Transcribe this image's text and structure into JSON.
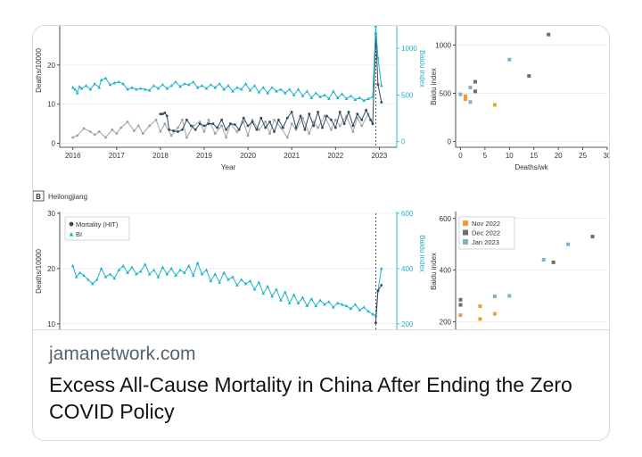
{
  "card": {
    "domain": "jamanetwork.com",
    "title": "Excess All-Cause Mortality in China After Ending the Zero COVID Policy"
  },
  "colors": {
    "mortality": "#2f4a5c",
    "baidu": "#1eb4cc",
    "mortality_alt": "#9aa4ab",
    "nov": "#f29a3a",
    "dec": "#6e6e6e",
    "jan": "#7fb2c9"
  },
  "chart_data": [
    {
      "id": "top-left",
      "type": "line",
      "xlabel": "Year",
      "ylabel": "Deaths/10000",
      "y2label": "Baidu index",
      "xlim": [
        2015.7,
        2023.4
      ],
      "ylim": [
        -1,
        30
      ],
      "y2lim": [
        -60,
        1240
      ],
      "x_ticks": [
        "2016",
        "2017",
        "2018",
        "2019",
        "2020",
        "2021",
        "2022",
        "2023"
      ],
      "y_ticks": [
        "0",
        "10",
        "20"
      ],
      "y2_ticks": [
        "0",
        "500",
        "1000"
      ],
      "dashed_x": 2022.92,
      "series": [
        {
          "role": "mortality_alt",
          "x": [
            2016.0,
            2016.1,
            2016.25,
            2016.4,
            2016.5,
            2016.6,
            2016.75,
            2016.9,
            2017.0,
            2017.1,
            2017.25,
            2017.4,
            2017.5,
            2017.6,
            2017.75,
            2017.9,
            2018.0,
            2018.1,
            2018.25,
            2018.4,
            2018.5,
            2018.6,
            2018.75,
            2018.9,
            2019.0,
            2019.1,
            2019.25,
            2019.4,
            2019.5,
            2019.6,
            2019.75,
            2019.9,
            2020.0,
            2020.1,
            2020.25,
            2020.4,
            2020.5,
            2020.6,
            2020.75,
            2020.9,
            2021.0,
            2021.1,
            2021.25,
            2021.4,
            2021.5,
            2021.6,
            2021.75,
            2021.9,
            2022.0,
            2022.1,
            2022.25,
            2022.4,
            2022.5,
            2022.6,
            2022.75,
            2022.85
          ],
          "values": [
            1.5,
            2,
            3.8,
            3,
            2.2,
            3,
            1.5,
            3.5,
            2.5,
            4,
            5.5,
            3.2,
            4.5,
            2.5,
            4.5,
            6,
            3,
            5,
            2,
            4,
            6,
            1.5,
            4.5,
            5.5,
            3,
            6,
            2.5,
            4.5,
            1.5,
            5,
            3,
            5.5,
            2,
            6,
            3.5,
            5.5,
            2.5,
            6,
            4,
            1.5,
            5,
            3.5,
            6.5,
            2.5,
            5.5,
            4,
            7,
            3.5,
            6,
            4.5,
            7,
            3,
            6.5,
            4.5,
            7.5,
            5
          ]
        },
        {
          "role": "mortality",
          "x": [
            2018.0,
            2018.05,
            2018.1,
            2018.15,
            2018.2,
            2018.3,
            2018.4,
            2018.5,
            2018.6,
            2018.7,
            2018.8,
            2018.9,
            2019.0,
            2019.1,
            2019.2,
            2019.3,
            2019.4,
            2019.5,
            2019.6,
            2019.7,
            2019.8,
            2019.9,
            2020.0,
            2020.1,
            2020.2,
            2020.3,
            2020.4,
            2020.5,
            2020.6,
            2020.7,
            2020.8,
            2020.9,
            2021.0,
            2021.1,
            2021.2,
            2021.3,
            2021.4,
            2021.5,
            2021.6,
            2021.7,
            2021.8,
            2021.9,
            2022.0,
            2022.1,
            2022.2,
            2022.3,
            2022.4,
            2022.5,
            2022.6,
            2022.7,
            2022.8,
            2022.85,
            2022.92,
            2022.97,
            2023.05
          ],
          "values": [
            7.5,
            7.5,
            7.8,
            7,
            3.5,
            3.2,
            3,
            3.5,
            6,
            4.5,
            3.5,
            5,
            4.5,
            5,
            5,
            4,
            6,
            3.5,
            5,
            4.8,
            3.5,
            6.5,
            4.5,
            5.5,
            3.5,
            6.5,
            4,
            5.5,
            3,
            6,
            4,
            6.5,
            8,
            4,
            7,
            3.5,
            7.5,
            4.5,
            8,
            4,
            7,
            6,
            4,
            8,
            5,
            8,
            4.5,
            7.5,
            6,
            8.5,
            6,
            5,
            28,
            15,
            10.5
          ]
        },
        {
          "role": "baidu",
          "axis": "y2",
          "x": [
            2016.0,
            2016.05,
            2016.1,
            2016.15,
            2016.2,
            2016.3,
            2016.4,
            2016.5,
            2016.6,
            2016.65,
            2016.75,
            2016.85,
            2016.95,
            2017.05,
            2017.15,
            2017.25,
            2017.35,
            2017.45,
            2017.55,
            2017.65,
            2017.75,
            2017.85,
            2017.95,
            2018.05,
            2018.15,
            2018.25,
            2018.35,
            2018.45,
            2018.55,
            2018.65,
            2018.75,
            2018.85,
            2018.95,
            2019.05,
            2019.15,
            2019.25,
            2019.35,
            2019.45,
            2019.55,
            2019.65,
            2019.75,
            2019.85,
            2019.95,
            2020.05,
            2020.15,
            2020.25,
            2020.35,
            2020.45,
            2020.55,
            2020.65,
            2020.75,
            2020.85,
            2020.95,
            2021.05,
            2021.15,
            2021.25,
            2021.35,
            2021.45,
            2021.55,
            2021.65,
            2021.75,
            2021.85,
            2021.95,
            2022.05,
            2022.15,
            2022.25,
            2022.35,
            2022.45,
            2022.55,
            2022.65,
            2022.75,
            2022.85,
            2022.92,
            2022.97,
            2023.05
          ],
          "values": [
            580,
            560,
            520,
            590,
            570,
            600,
            560,
            620,
            580,
            660,
            680,
            610,
            630,
            640,
            620,
            560,
            580,
            560,
            570,
            560,
            550,
            600,
            570,
            610,
            570,
            600,
            640,
            590,
            620,
            610,
            640,
            580,
            600,
            570,
            610,
            580,
            620,
            560,
            600,
            540,
            580,
            560,
            620,
            550,
            600,
            530,
            580,
            520,
            580,
            540,
            560,
            520,
            560,
            500,
            560,
            490,
            540,
            470,
            520,
            480,
            500,
            460,
            540,
            470,
            510,
            460,
            490,
            450,
            470,
            440,
            460,
            480,
            1240,
            900,
            600
          ]
        }
      ]
    },
    {
      "id": "top-right",
      "type": "scatter",
      "xlabel": "Deaths/wk",
      "ylabel": "Baidu index",
      "xlim": [
        -1,
        30
      ],
      "ylim": [
        -60,
        1200
      ],
      "x_ticks": [
        "0",
        "5",
        "10",
        "15",
        "20",
        "25",
        "30"
      ],
      "y_ticks": [
        "0",
        "500",
        "1000"
      ],
      "series": [
        {
          "role": "nov",
          "x": [
            1,
            1,
            7
          ],
          "values": [
            470,
            440,
            380
          ]
        },
        {
          "role": "dec",
          "x": [
            3,
            3,
            14,
            18
          ],
          "values": [
            520,
            620,
            680,
            1110
          ]
        },
        {
          "role": "jan",
          "x": [
            0,
            2,
            2,
            10
          ],
          "values": [
            490,
            560,
            410,
            850
          ]
        }
      ]
    },
    {
      "id": "bottom-left",
      "type": "line",
      "panel_label": "B",
      "panel_title": "Heilongjiang",
      "ylabel": "Deaths/10000",
      "y2label": "Baidu index",
      "xlim": [
        2015.7,
        2023.4
      ],
      "ylim": [
        9,
        30
      ],
      "y2lim": [
        180,
        600
      ],
      "y_ticks": [
        "10",
        "20",
        "30"
      ],
      "y2_ticks": [
        "200",
        "400",
        "600"
      ],
      "dashed_x": 2022.92,
      "legend": [
        "Mortality (HIT)",
        "BI"
      ],
      "series": [
        {
          "role": "baidu",
          "axis": "y2",
          "x": [
            2016.0,
            2016.08,
            2016.16,
            2016.25,
            2016.35,
            2016.45,
            2016.55,
            2016.65,
            2016.75,
            2016.85,
            2016.95,
            2017.05,
            2017.15,
            2017.25,
            2017.35,
            2017.45,
            2017.55,
            2017.65,
            2017.75,
            2017.85,
            2017.95,
            2018.05,
            2018.15,
            2018.25,
            2018.35,
            2018.45,
            2018.55,
            2018.65,
            2018.75,
            2018.85,
            2018.95,
            2019.05,
            2019.15,
            2019.25,
            2019.35,
            2019.45,
            2019.55,
            2019.65,
            2019.75,
            2019.85,
            2019.95,
            2020.05,
            2020.15,
            2020.25,
            2020.35,
            2020.45,
            2020.55,
            2020.65,
            2020.75,
            2020.85,
            2020.95,
            2021.05,
            2021.15,
            2021.25,
            2021.35,
            2021.45,
            2021.55,
            2021.65,
            2021.75,
            2021.85,
            2021.95,
            2022.05,
            2022.15,
            2022.25,
            2022.35,
            2022.45,
            2022.55,
            2022.65,
            2022.75,
            2022.85,
            2022.92,
            2022.97,
            2023.05
          ],
          "values": [
            410,
            370,
            385,
            375,
            360,
            345,
            360,
            400,
            370,
            380,
            365,
            395,
            410,
            385,
            405,
            380,
            390,
            415,
            380,
            395,
            370,
            405,
            380,
            400,
            375,
            395,
            385,
            410,
            375,
            420,
            380,
            395,
            355,
            380,
            350,
            385,
            360,
            370,
            340,
            360,
            345,
            355,
            325,
            350,
            310,
            335,
            300,
            325,
            285,
            315,
            275,
            305,
            275,
            295,
            265,
            290,
            265,
            285,
            270,
            280,
            260,
            275,
            270,
            265,
            255,
            270,
            250,
            260,
            245,
            235,
            230,
            320,
            400
          ]
        },
        {
          "role": "mortality",
          "x": [
            2022.92,
            2022.97,
            2023.05
          ],
          "values": [
            10.2,
            16,
            17
          ]
        }
      ]
    },
    {
      "id": "bottom-right",
      "type": "scatter",
      "ylabel": "Baidu index",
      "xlim": [
        -1,
        30
      ],
      "ylim": [
        170,
        620
      ],
      "y_ticks": [
        "200",
        "400",
        "600"
      ],
      "legend": [
        "Nov 2022",
        "Dec 2022",
        "Jan 2023"
      ],
      "series": [
        {
          "role": "nov",
          "x": [
            0,
            4,
            4,
            7
          ],
          "values": [
            225,
            260,
            210,
            230
          ]
        },
        {
          "role": "dec",
          "x": [
            0,
            0,
            19,
            27
          ],
          "values": [
            285,
            265,
            430,
            530
          ]
        },
        {
          "role": "jan",
          "x": [
            7,
            10,
            17,
            22
          ],
          "values": [
            298,
            300,
            440,
            500
          ]
        }
      ]
    }
  ]
}
